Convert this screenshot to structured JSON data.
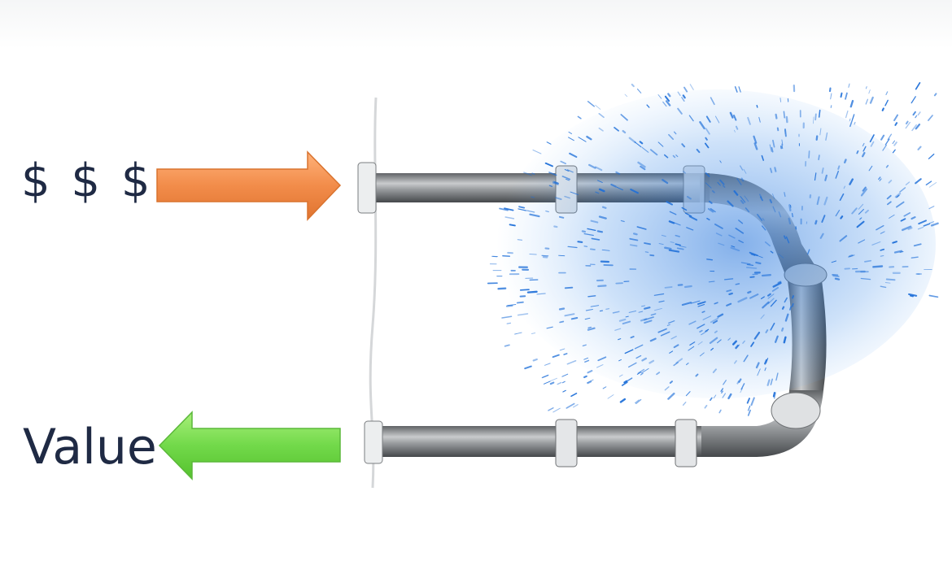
{
  "labels": {
    "input": "$ $ $",
    "output": "Value"
  },
  "arrows": {
    "input": {
      "direction": "right",
      "color": "#f28c4a"
    },
    "output": {
      "direction": "left",
      "color": "#72d94a"
    }
  },
  "leak": {
    "color": "#1e6fd9"
  },
  "pipe": {
    "color": "#8a8d90"
  }
}
